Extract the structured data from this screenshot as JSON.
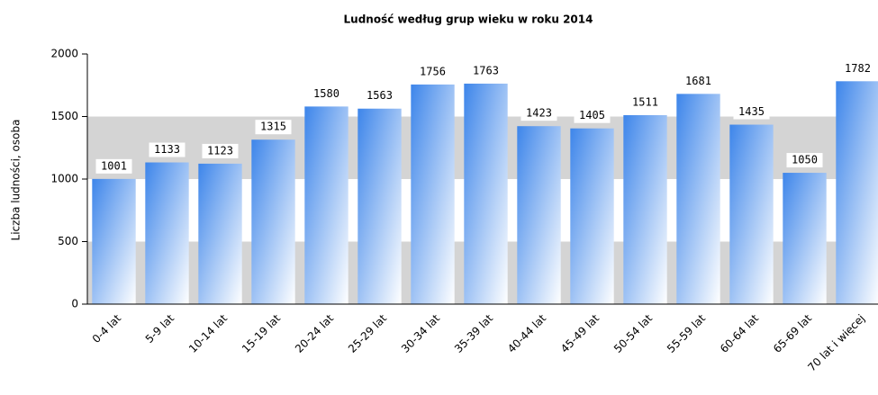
{
  "chart_data": {
    "type": "bar",
    "title": "Ludność według grup wieku w roku 2014",
    "y_label": "Liczba ludności, osoba",
    "categories": [
      "0-4 lat",
      "5-9 lat",
      "10-14 lat",
      "15-19 lat",
      "20-24 lat",
      "25-29 lat",
      "30-34 lat",
      "35-39 lat",
      "40-44 lat",
      "45-49 lat",
      "50-54 lat",
      "55-59 lat",
      "60-64 lat",
      "65-69 lat",
      "70 lat i więcej"
    ],
    "values": [
      1001,
      1133,
      1123,
      1315,
      1580,
      1563,
      1756,
      1763,
      1423,
      1405,
      1511,
      1681,
      1435,
      1050,
      1782
    ],
    "color": "#3d85ea",
    "ylim": [
      0,
      2000
    ],
    "yticks": [
      0,
      500,
      1000,
      1500,
      2000
    ],
    "grid": true
  }
}
